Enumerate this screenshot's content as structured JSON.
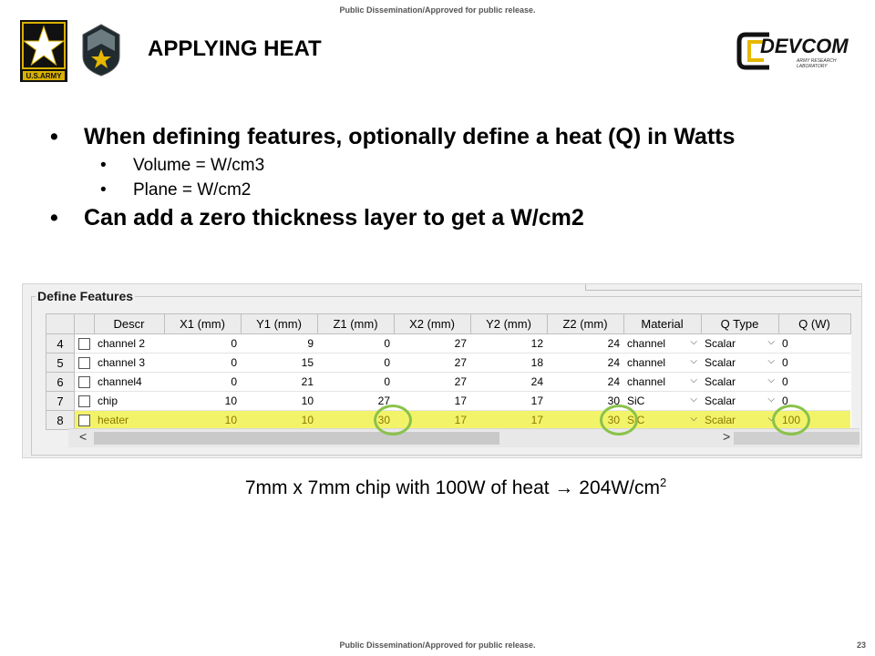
{
  "header": {
    "banner_top": "Public Dissemination/Approved for public release.",
    "title": "APPLYING HEAT",
    "army_logo_text": "U.S.ARMY",
    "devcom_logo_text": "DEVCOM",
    "devcom_logo_sub": "ARMY RESEARCH LABORATORY"
  },
  "bullets": {
    "b1": "When defining features, optionally define a heat (Q) in Watts",
    "sub1": "Volume = W/cm3",
    "sub2": "Plane = W/cm2",
    "b2": "Can add a zero thickness layer to get a W/cm2"
  },
  "panel": {
    "group_label": "Define Features",
    "columns": [
      "Descr",
      "X1 (mm)",
      "Y1 (mm)",
      "Z1 (mm)",
      "X2 (mm)",
      "Y2 (mm)",
      "Z2 (mm)",
      "Material",
      "Q Type",
      "Q (W)"
    ],
    "rows": [
      {
        "num": "4",
        "descr": "channel 2",
        "x1": "0",
        "y1": "9",
        "z1": "0",
        "x2": "27",
        "y2": "12",
        "z2": "24",
        "material": "channel",
        "qtype": "Scalar",
        "q": "0"
      },
      {
        "num": "5",
        "descr": "channel 3",
        "x1": "0",
        "y1": "15",
        "z1": "0",
        "x2": "27",
        "y2": "18",
        "z2": "24",
        "material": "channel",
        "qtype": "Scalar",
        "q": "0"
      },
      {
        "num": "6",
        "descr": "channel4",
        "x1": "0",
        "y1": "21",
        "z1": "0",
        "x2": "27",
        "y2": "24",
        "z2": "24",
        "material": "channel",
        "qtype": "Scalar",
        "q": "0"
      },
      {
        "num": "7",
        "descr": "chip",
        "x1": "10",
        "y1": "10",
        "z1": "27",
        "x2": "17",
        "y2": "17",
        "z2": "30",
        "material": "SiC",
        "qtype": "Scalar",
        "q": "0"
      },
      {
        "num": "8",
        "descr": "heater",
        "x1": "10",
        "y1": "10",
        "z1": "30",
        "x2": "17",
        "y2": "17",
        "z2": "30",
        "material": "SiC",
        "qtype": "Scalar",
        "q": "100"
      }
    ],
    "scroll_left": "<",
    "scroll_right": ">"
  },
  "caption": {
    "text": "7mm x 7mm chip with 100W of heat → 204W/cm",
    "sup": "2"
  },
  "footer": {
    "banner_bottom": "Public Dissemination/Approved for public release.",
    "page": "23"
  },
  "colors": {
    "highlight_row": "#f3f36a",
    "annotation_circle": "#8ac24a"
  }
}
